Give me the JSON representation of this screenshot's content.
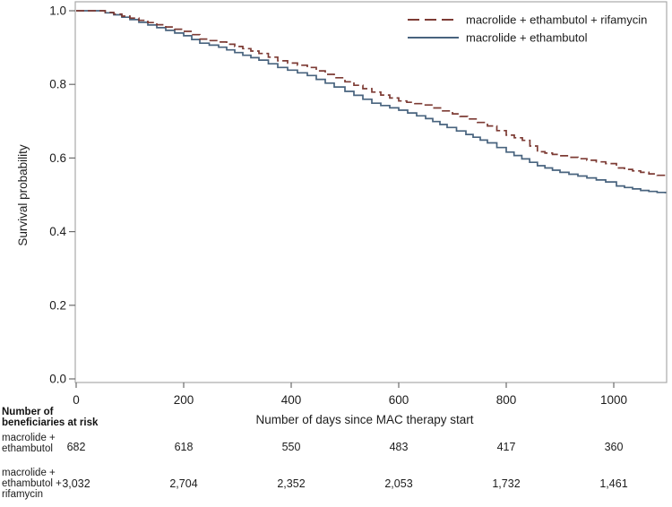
{
  "chart_data": {
    "type": "line",
    "subtype": "kaplan-meier-step",
    "title": "",
    "xlabel": "Number of days since MAC therapy start",
    "ylabel": "Survival probability",
    "xlim": [
      0,
      1098
    ],
    "ylim": [
      0.0,
      1.0
    ],
    "x_ticks": [
      "0",
      "200",
      "400",
      "600",
      "800",
      "1000"
    ],
    "x_tick_values": [
      0,
      200,
      400,
      600,
      800,
      1000
    ],
    "y_ticks": [
      "0.0",
      "0.2",
      "0.4",
      "0.6",
      "0.8",
      "1.0"
    ],
    "y_tick_values": [
      0.0,
      0.2,
      0.4,
      0.6,
      0.8,
      1.0
    ],
    "grid": false,
    "legend_position": "top-right-inside",
    "frame_color": "#a9a9a9",
    "tick_color": "#6b6b6b",
    "text_color": "#1c1c1c",
    "series": [
      {
        "name": "macrolide + ethambutol + rifamycin",
        "style": "dashed",
        "color": "#7d3b34",
        "points": [
          [
            0,
            1.0
          ],
          [
            38,
            1.0
          ],
          [
            70,
            0.991
          ],
          [
            100,
            0.98
          ],
          [
            150,
            0.962
          ],
          [
            200,
            0.944
          ],
          [
            215,
            0.935
          ],
          [
            230,
            0.923
          ],
          [
            265,
            0.915
          ],
          [
            310,
            0.897
          ],
          [
            340,
            0.884
          ],
          [
            375,
            0.864
          ],
          [
            430,
            0.846
          ],
          [
            480,
            0.818
          ],
          [
            500,
            0.807
          ],
          [
            550,
            0.779
          ],
          [
            600,
            0.755
          ],
          [
            645,
            0.744
          ],
          [
            700,
            0.72
          ],
          [
            728,
            0.706
          ],
          [
            765,
            0.687
          ],
          [
            800,
            0.662
          ],
          [
            830,
            0.648
          ],
          [
            858,
            0.617
          ],
          [
            900,
            0.606
          ],
          [
            950,
            0.594
          ],
          [
            985,
            0.585
          ],
          [
            1005,
            0.573
          ],
          [
            1050,
            0.561
          ],
          [
            1096,
            0.549
          ]
        ]
      },
      {
        "name": "macrolide + ethambutol",
        "style": "solid",
        "color": "#48637e",
        "points": [
          [
            0,
            1.0
          ],
          [
            38,
            1.0
          ],
          [
            70,
            0.989
          ],
          [
            100,
            0.976
          ],
          [
            150,
            0.954
          ],
          [
            200,
            0.932
          ],
          [
            215,
            0.922
          ],
          [
            230,
            0.912
          ],
          [
            265,
            0.901
          ],
          [
            310,
            0.879
          ],
          [
            340,
            0.866
          ],
          [
            375,
            0.846
          ],
          [
            430,
            0.824
          ],
          [
            480,
            0.793
          ],
          [
            500,
            0.781
          ],
          [
            550,
            0.749
          ],
          [
            600,
            0.73
          ],
          [
            650,
            0.707
          ],
          [
            690,
            0.683
          ],
          [
            725,
            0.664
          ],
          [
            765,
            0.641
          ],
          [
            800,
            0.616
          ],
          [
            858,
            0.579
          ],
          [
            900,
            0.561
          ],
          [
            950,
            0.546
          ],
          [
            985,
            0.535
          ],
          [
            1005,
            0.524
          ],
          [
            1050,
            0.512
          ],
          [
            1096,
            0.504
          ]
        ]
      }
    ]
  },
  "risk_table": {
    "header": "Number of\nbeneficiaries at risk",
    "columns": [
      "0",
      "200",
      "400",
      "600",
      "800",
      "1000"
    ],
    "column_days": [
      0,
      200,
      400,
      600,
      800,
      1000
    ],
    "rows": [
      {
        "label_lines": [
          "macrolide +",
          "ethambutol"
        ],
        "values": [
          "682",
          "618",
          "550",
          "483",
          "417",
          "360"
        ]
      },
      {
        "label_lines": [
          "macrolide +",
          "ethambutol +",
          "rifamycin"
        ],
        "values": [
          "3,032",
          "2,704",
          "2,352",
          "2,053",
          "1,732",
          "1,461"
        ]
      }
    ]
  }
}
